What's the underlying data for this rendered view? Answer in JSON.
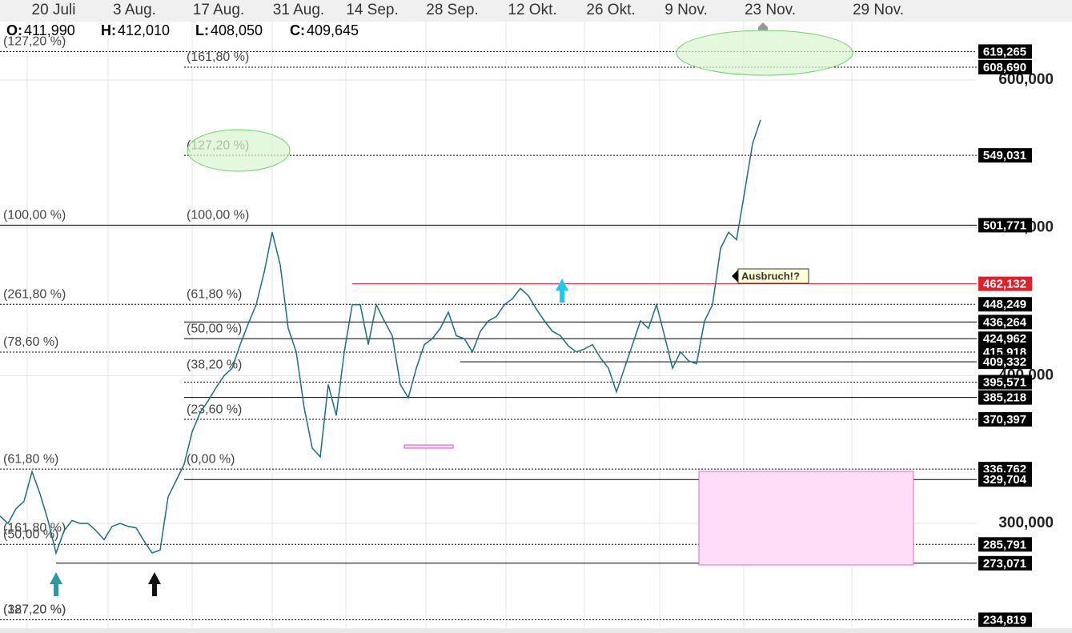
{
  "chart_data": {
    "type": "line",
    "x_labels": [
      "20 Juli",
      "3 Aug.",
      "17 Aug.",
      "31 Aug.",
      "14 Sep.",
      "28 Sep.",
      "12 Okt.",
      "26 Okt.",
      "9 Nov.",
      "23 Nov.",
      "29 Nov."
    ],
    "ohlc": [
      {
        "key": "O:",
        "value": "411,990"
      },
      {
        "key": "H:",
        "value": "412,010"
      },
      {
        "key": "L:",
        "value": "408,050"
      },
      {
        "key": "C:",
        "value": "409,645"
      }
    ],
    "ylim": [
      229100,
      637900
    ],
    "yticks": [
      {
        "value": 300000,
        "label": "300,000"
      },
      {
        "value": 400000,
        "label": "400,000"
      },
      {
        "value": 500000,
        "label": "500,000"
      },
      {
        "value": 600000,
        "label": "600,000"
      }
    ],
    "grid": true,
    "series": [
      {
        "name": "Kurs",
        "color": "#1b6f7a",
        "values": [
          305000,
          300000,
          310000,
          315000,
          335000,
          320000,
          302000,
          280000,
          295000,
          302000,
          300000,
          300000,
          295000,
          289000,
          298000,
          300000,
          298000,
          297000,
          288000,
          280000,
          282000,
          318000,
          329000,
          340000,
          362000,
          375000,
          383000,
          392000,
          400000,
          405000,
          421000,
          435000,
          448000,
          470000,
          497000,
          475000,
          432000,
          416000,
          378000,
          351000,
          345000,
          394000,
          373000,
          416000,
          448000,
          448000,
          421000,
          448000,
          437000,
          427000,
          394000,
          385000,
          405000,
          421000,
          425000,
          432000,
          443000,
          427000,
          425000,
          416000,
          430000,
          437000,
          440000,
          448000,
          452000,
          459000,
          454000,
          445000,
          437000,
          430000,
          427000,
          420000,
          416000,
          418000,
          421000,
          412000,
          405000,
          389000,
          405000,
          421000,
          437000,
          432000,
          448000,
          427000,
          405000,
          416000,
          410000,
          408000,
          437000,
          448000,
          486000,
          497000,
          492000,
          524000,
          557000,
          573000
        ]
      }
    ],
    "levels": [
      {
        "value": 619265,
        "label": "619,265",
        "style": "dotted",
        "color": "#000000"
      },
      {
        "value": 608690,
        "label": "608,690",
        "style": "dotted",
        "color": "#000000"
      },
      {
        "value": 549031,
        "label": "549,031",
        "style": "dotted",
        "color": "#000000"
      },
      {
        "value": 501771,
        "label": "501,771",
        "style": "solid",
        "color": "#000000"
      },
      {
        "value": 462132,
        "label": "462,132",
        "style": "solid",
        "color": "#e0202a"
      },
      {
        "value": 448249,
        "label": "448,249",
        "style": "dotted",
        "color": "#000000"
      },
      {
        "value": 436264,
        "label": "436,264",
        "style": "solid",
        "color": "#000000"
      },
      {
        "value": 424962,
        "label": "424,962",
        "style": "solid",
        "color": "#000000"
      },
      {
        "value": 415918,
        "label": "415,918",
        "style": "dotted",
        "color": "#000000"
      },
      {
        "value": 409332,
        "label": "409,332",
        "style": "solid",
        "color": "#000000"
      },
      {
        "value": 395571,
        "label": "395,571",
        "style": "dotted",
        "color": "#000000"
      },
      {
        "value": 385218,
        "label": "385,218",
        "style": "solid",
        "color": "#000000"
      },
      {
        "value": 370397,
        "label": "370,397",
        "style": "dotted",
        "color": "#000000"
      },
      {
        "value": 336762,
        "label": "336,762",
        "style": "dotted",
        "color": "#000000"
      },
      {
        "value": 329704,
        "label": "329,704",
        "style": "solid",
        "color": "#000000"
      },
      {
        "value": 285791,
        "label": "285,791",
        "style": "dotted",
        "color": "#000000"
      },
      {
        "value": 273071,
        "label": "273,071",
        "style": "solid",
        "color": "#000000"
      },
      {
        "value": 234819,
        "label": "234,819",
        "style": "dotted",
        "color": "#000000"
      }
    ],
    "fib_left": [
      {
        "label": "(127,20 %)",
        "value": 619265
      },
      {
        "label": "(100,00 %)",
        "value": 501771
      },
      {
        "label": "(261,80 %)",
        "value": 448249
      },
      {
        "label": "(78,60 %)",
        "value": 415918
      },
      {
        "label": "(61,80 %)",
        "value": 336762
      },
      {
        "label": "(161,80 %)",
        "value": 290000
      },
      {
        "label": "(50,00 %)",
        "value": 285791
      },
      {
        "label": "(387,20 %)",
        "value": 234819
      },
      {
        "label": "(127,20 %)",
        "value": 234819
      }
    ],
    "fib_mid": [
      {
        "label": "(161,80 %)",
        "value": 608690
      },
      {
        "label": "(127,20 %)",
        "value": 549031
      },
      {
        "label": "(100,00 %)",
        "value": 501771
      },
      {
        "label": "(61,80 %)",
        "value": 448249
      },
      {
        "label": "(50,00 %)",
        "value": 424962
      },
      {
        "label": "(38,20 %)",
        "value": 400500
      },
      {
        "label": "(23,60 %)",
        "value": 370397
      },
      {
        "label": "(0,00 %)",
        "value": 336762
      }
    ],
    "annotation": "Ausbruch!?"
  }
}
